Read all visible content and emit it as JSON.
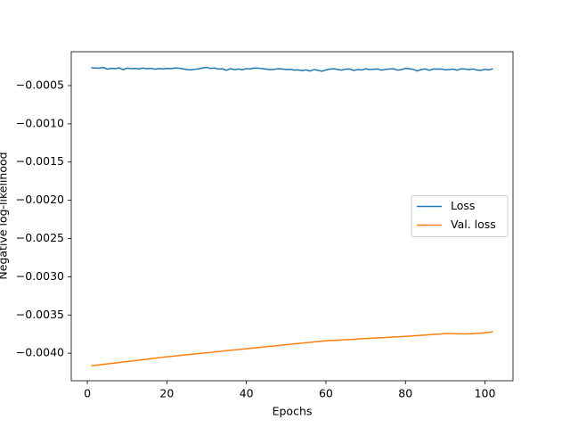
{
  "chart_data": {
    "type": "line",
    "xlabel": "Epochs",
    "ylabel": "Negative log-likelihood",
    "x": [
      1,
      2,
      3,
      4,
      5,
      6,
      7,
      8,
      9,
      10,
      11,
      12,
      13,
      14,
      15,
      16,
      17,
      18,
      19,
      20,
      21,
      22,
      23,
      24,
      25,
      26,
      27,
      28,
      29,
      30,
      31,
      32,
      33,
      34,
      35,
      36,
      37,
      38,
      39,
      40,
      41,
      42,
      43,
      44,
      45,
      46,
      47,
      48,
      49,
      50,
      51,
      52,
      53,
      54,
      55,
      56,
      57,
      58,
      59,
      60,
      61,
      62,
      63,
      64,
      65,
      66,
      67,
      68,
      69,
      70,
      71,
      72,
      73,
      74,
      75,
      76,
      77,
      78,
      79,
      80,
      81,
      82,
      83,
      84,
      85,
      86,
      87,
      88,
      89,
      90,
      91,
      92,
      93,
      94,
      95,
      96,
      97,
      98,
      99,
      100,
      101,
      102
    ],
    "series": [
      {
        "name": "Loss",
        "color": "#1f77b4",
        "values": [
          -0.000268,
          -0.00027,
          -0.000272,
          -0.000262,
          -0.000285,
          -0.000275,
          -0.000278,
          -0.000268,
          -0.000292,
          -0.000272,
          -0.000278,
          -0.000276,
          -0.000282,
          -0.000272,
          -0.00028,
          -0.000274,
          -0.000286,
          -0.000277,
          -0.000283,
          -0.000276,
          -0.000279,
          -0.00027,
          -0.000273,
          -0.00028,
          -0.00029,
          -0.000295,
          -0.000288,
          -0.00028,
          -0.00027,
          -0.000262,
          -0.000275,
          -0.00027,
          -0.000285,
          -0.00028,
          -0.0003,
          -0.000278,
          -0.000292,
          -0.000283,
          -0.000293,
          -0.000278,
          -0.000282,
          -0.00027,
          -0.000272,
          -0.000278,
          -0.000285,
          -0.000292,
          -0.000288,
          -0.00028,
          -0.000283,
          -0.00029,
          -0.000288,
          -0.000298,
          -0.000295,
          -0.000305,
          -0.000295,
          -0.00031,
          -0.00029,
          -0.0003,
          -0.000312,
          -0.000295,
          -0.000285,
          -0.00028,
          -0.00029,
          -0.000298,
          -0.000285,
          -0.000283,
          -0.000302,
          -0.00029,
          -0.000296,
          -0.00028,
          -0.00029,
          -0.000286,
          -0.000283,
          -0.000298,
          -0.000288,
          -0.000283,
          -0.00028,
          -0.000298,
          -0.000292,
          -0.000275,
          -0.00028,
          -0.000288,
          -0.000308,
          -0.00029,
          -0.000282,
          -0.0003,
          -0.000283,
          -0.000285,
          -0.000283,
          -0.000293,
          -0.00029,
          -0.000285,
          -0.000298,
          -0.00028,
          -0.000285,
          -0.00029,
          -0.000283,
          -0.000298,
          -0.0003,
          -0.000288,
          -0.000295,
          -0.00028
        ]
      },
      {
        "name": "Val. loss",
        "color": "#ff7f0e",
        "values": [
          -0.004165,
          -0.004159,
          -0.004153,
          -0.004146,
          -0.00414,
          -0.004134,
          -0.004128,
          -0.004122,
          -0.004115,
          -0.004109,
          -0.004103,
          -0.004097,
          -0.004091,
          -0.004084,
          -0.004078,
          -0.004072,
          -0.004066,
          -0.004059,
          -0.004053,
          -0.004047,
          -0.004042,
          -0.004036,
          -0.004031,
          -0.004026,
          -0.00402,
          -0.004015,
          -0.00401,
          -0.004005,
          -0.003999,
          -0.003994,
          -0.003989,
          -0.003983,
          -0.003978,
          -0.003973,
          -0.003967,
          -0.003962,
          -0.003957,
          -0.003952,
          -0.003946,
          -0.003941,
          -0.003936,
          -0.003931,
          -0.003925,
          -0.00392,
          -0.003915,
          -0.00391,
          -0.003905,
          -0.003899,
          -0.003894,
          -0.003889,
          -0.003884,
          -0.003878,
          -0.003873,
          -0.003868,
          -0.003863,
          -0.003858,
          -0.003852,
          -0.003847,
          -0.003842,
          -0.003837,
          -0.003834,
          -0.003832,
          -0.003829,
          -0.003826,
          -0.003823,
          -0.00382,
          -0.003817,
          -0.003814,
          -0.003811,
          -0.003808,
          -0.003805,
          -0.003802,
          -0.003799,
          -0.003797,
          -0.003794,
          -0.003791,
          -0.003788,
          -0.003786,
          -0.003783,
          -0.00378,
          -0.003777,
          -0.003773,
          -0.003769,
          -0.003766,
          -0.003762,
          -0.003758,
          -0.003755,
          -0.003751,
          -0.003748,
          -0.003744,
          -0.003744,
          -0.003745,
          -0.003746,
          -0.003747,
          -0.003748,
          -0.003747,
          -0.003745,
          -0.003741,
          -0.003737,
          -0.003732,
          -0.003726,
          -0.00372
        ]
      }
    ],
    "xlim": [
      -4.05,
      107.05
    ],
    "xticks": [
      0,
      20,
      40,
      60,
      80,
      100
    ],
    "ylim": [
      -0.00436,
      -5.7e-05
    ],
    "yticks": [
      {
        "value": -0.0005,
        "label": "−0.0005"
      },
      {
        "value": -0.001,
        "label": "−0.0010"
      },
      {
        "value": -0.0015,
        "label": "−0.0015"
      },
      {
        "value": -0.002,
        "label": "−0.0020"
      },
      {
        "value": -0.0025,
        "label": "−0.0025"
      },
      {
        "value": -0.003,
        "label": "−0.0030"
      },
      {
        "value": -0.0035,
        "label": "−0.0035"
      },
      {
        "value": -0.004,
        "label": "−0.0040"
      }
    ],
    "legend": "center right"
  }
}
